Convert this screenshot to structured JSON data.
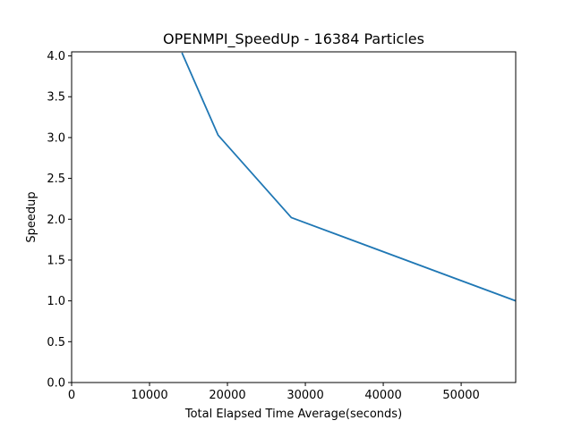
{
  "chart_data": {
    "type": "line",
    "title": "OPENMPI_SpeedUp - 16384 Particles",
    "xlabel": "Total Elapsed Time Average(seconds)",
    "ylabel": "Speedup",
    "xlim": [
      0,
      57000
    ],
    "ylim": [
      0,
      4.05
    ],
    "grid": false,
    "x_ticks": [
      0,
      10000,
      20000,
      30000,
      40000,
      50000
    ],
    "x_tick_labels": [
      "0",
      "10000",
      "20000",
      "30000",
      "40000",
      "50000"
    ],
    "y_ticks": [
      0,
      0.5,
      1,
      1.5,
      2,
      2.5,
      3,
      3.5,
      4
    ],
    "y_tick_labels": [
      "0.0",
      "0.5",
      "1.0",
      "1.5",
      "2.0",
      "2.5",
      "3.0",
      "3.5",
      "4.0"
    ],
    "series": [
      {
        "color": "#1f77b4",
        "x": [
          14200,
          18800,
          28200,
          57000
        ],
        "y": [
          4.03,
          3.03,
          2.02,
          1.0
        ]
      }
    ]
  }
}
